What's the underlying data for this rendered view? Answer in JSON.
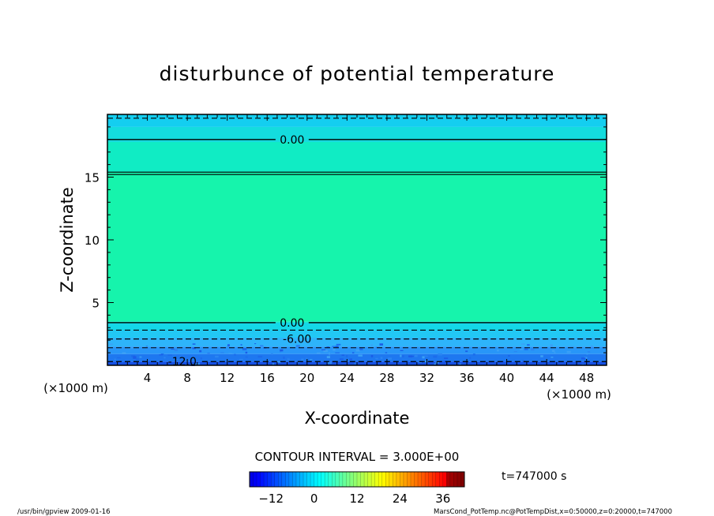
{
  "chart_data": {
    "type": "heatmap",
    "title": "disturbunce of potential temperature",
    "xlabel": "X-coordinate",
    "ylabel": "Z-coordinate",
    "x_unit_left": "(×1000 m)",
    "x_unit_right": "(×1000 m)",
    "xlim": [
      0,
      50
    ],
    "ylim": [
      0,
      20
    ],
    "x_ticks": [
      4,
      8,
      12,
      16,
      20,
      24,
      28,
      32,
      36,
      40,
      44,
      48
    ],
    "x_tick_labels": [
      "4",
      "8",
      "12",
      "16",
      "20",
      "24",
      "28",
      "32",
      "36",
      "40",
      "44",
      "48"
    ],
    "y_ticks": [
      5,
      10,
      15
    ],
    "y_tick_labels": [
      "5",
      "10",
      "15"
    ],
    "fill_bands": [
      {
        "z0": 0.0,
        "z1": 0.3,
        "color": "#1450e6"
      },
      {
        "z0": 0.3,
        "z1": 0.9,
        "color": "#1e78f0"
      },
      {
        "z0": 0.9,
        "z1": 1.5,
        "color": "#2896f8"
      },
      {
        "z0": 1.5,
        "z1": 2.2,
        "color": "#2eb4fa"
      },
      {
        "z0": 2.2,
        "z1": 2.8,
        "color": "#22c8f4"
      },
      {
        "z0": 2.8,
        "z1": 3.4,
        "color": "#14d8e8"
      },
      {
        "z0": 3.4,
        "z1": 3.5,
        "color": "#10e6c8"
      },
      {
        "z0": 3.5,
        "z1": 15.4,
        "color": "#16f4ac"
      },
      {
        "z0": 15.4,
        "z1": 17.8,
        "color": "#10ecc4"
      },
      {
        "z0": 17.8,
        "z1": 19.0,
        "color": "#14dcde"
      },
      {
        "z0": 19.0,
        "z1": 20.0,
        "color": "#14cef0"
      }
    ],
    "contours": [
      {
        "z": 18.0,
        "value": 0.0,
        "style": "solid",
        "label": "0.00",
        "label_x": 18.5
      },
      {
        "z": 15.4,
        "value": 0.0,
        "style": "solid-double",
        "label": "",
        "label_x": 0
      },
      {
        "z": 3.4,
        "value": 0.0,
        "style": "solid",
        "label": "0.00",
        "label_x": 18.5
      },
      {
        "z": 2.8,
        "value": -3.0,
        "style": "dashed",
        "label": "",
        "label_x": 0
      },
      {
        "z": 2.1,
        "value": -6.0,
        "style": "dashed",
        "label": "-6.00",
        "label_x": 19.0
      },
      {
        "z": 1.4,
        "value": -9.0,
        "style": "dashed",
        "label": "",
        "label_x": 0
      },
      {
        "z": 0.3,
        "value": -12.0,
        "style": "dashed",
        "label": "-12.0",
        "label_x": 7.5
      },
      {
        "z": 19.7,
        "value": 0.0,
        "style": "dashed",
        "label": "",
        "label_x": 0
      }
    ],
    "contour_interval_label": "CONTOUR INTERVAL = 3.000E+00",
    "colorbar": {
      "min": -18,
      "max": 42,
      "tick_values": [
        -12,
        0,
        12,
        24,
        36
      ],
      "tick_labels": [
        "−12",
        "0",
        "12",
        "24",
        "36"
      ]
    },
    "time_label": "t=747000 s"
  },
  "footer": {
    "left": "/usr/bin/gpview   2009-01-16",
    "right": "MarsCond_PotTemp.nc@PotTempDist,x=0:50000,z=0:20000,t=747000"
  }
}
